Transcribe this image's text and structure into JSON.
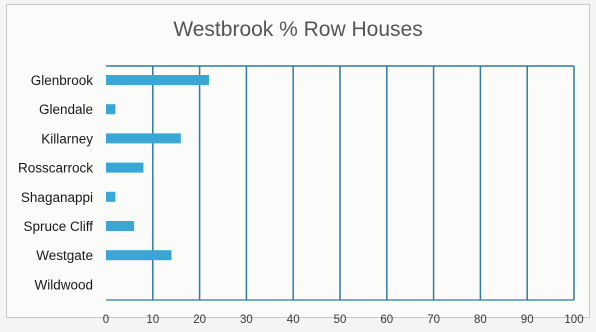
{
  "chart_data": {
    "type": "bar",
    "orientation": "horizontal",
    "title": "Westbrook % Row Houses",
    "categories": [
      "Glenbrook",
      "Glendale",
      "Killarney",
      "Rosscarrock",
      "Shaganappi",
      "Spruce Cliff",
      "Westgate",
      "Wildwood"
    ],
    "values": [
      22,
      2,
      16,
      8,
      2,
      6,
      14,
      0
    ],
    "xlim": [
      0,
      100
    ],
    "xticks": [
      "0",
      "10",
      "20",
      "30",
      "40",
      "50",
      "60",
      "70",
      "80",
      "90",
      "100"
    ],
    "xlabel": "",
    "ylabel": "",
    "grid": "vertical",
    "legend": "none",
    "bar_color": "#3aa6d6",
    "grid_color": "#2a7d9e"
  }
}
